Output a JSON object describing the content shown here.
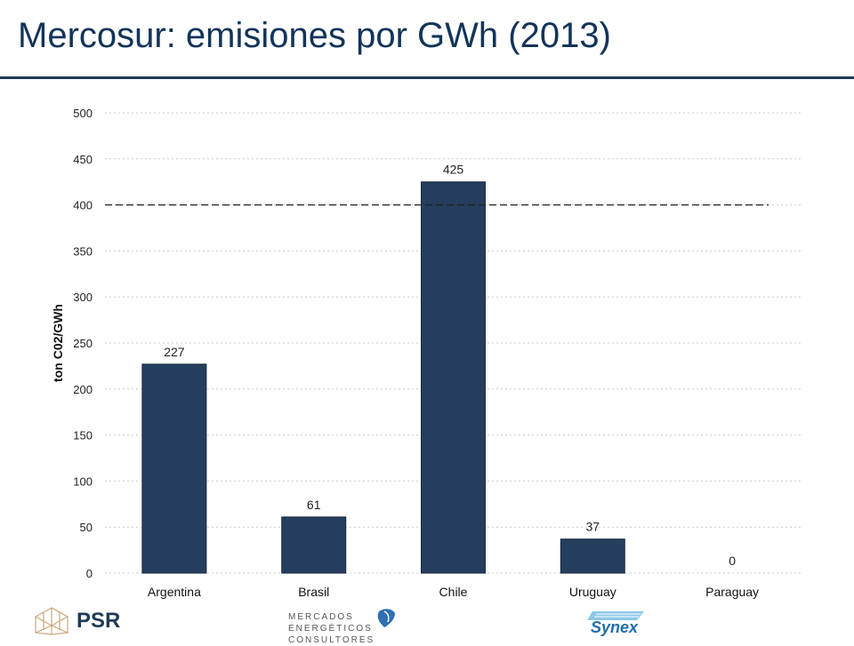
{
  "slide": {
    "title": "Mercosur: emisiones por GWh (2013)"
  },
  "colors": {
    "title": "#12345a",
    "bar": "#253e5d",
    "rule": "#1d3b57",
    "grid": "#cccccc",
    "reference_line": "#222222"
  },
  "chart_data": {
    "type": "bar",
    "categories": [
      "Argentina",
      "Brasil",
      "Chile",
      "Uruguay",
      "Paraguay"
    ],
    "values": [
      227,
      61,
      425,
      37,
      0
    ],
    "data_labels": [
      "227",
      "61",
      "425",
      "37",
      "0"
    ],
    "title": "",
    "xlabel": "",
    "ylabel": "ton C02/GWh",
    "ylim": [
      0,
      500
    ],
    "yticks": [
      0,
      50,
      100,
      150,
      200,
      250,
      300,
      350,
      400,
      450,
      500
    ],
    "grid": "horizontal dotted",
    "reference_line": {
      "y": 400,
      "style": "dashed"
    },
    "legend": "none"
  },
  "footer": {
    "logos": [
      {
        "icon": "psr-logo-icon",
        "text": "PSR"
      },
      {
        "icon": "mercados-energeticos-logo-icon",
        "text": "MERCADOS ENERGÉTICOS CONSULTORES"
      },
      {
        "icon": "synex-logo-icon",
        "text": "Synex"
      }
    ]
  }
}
